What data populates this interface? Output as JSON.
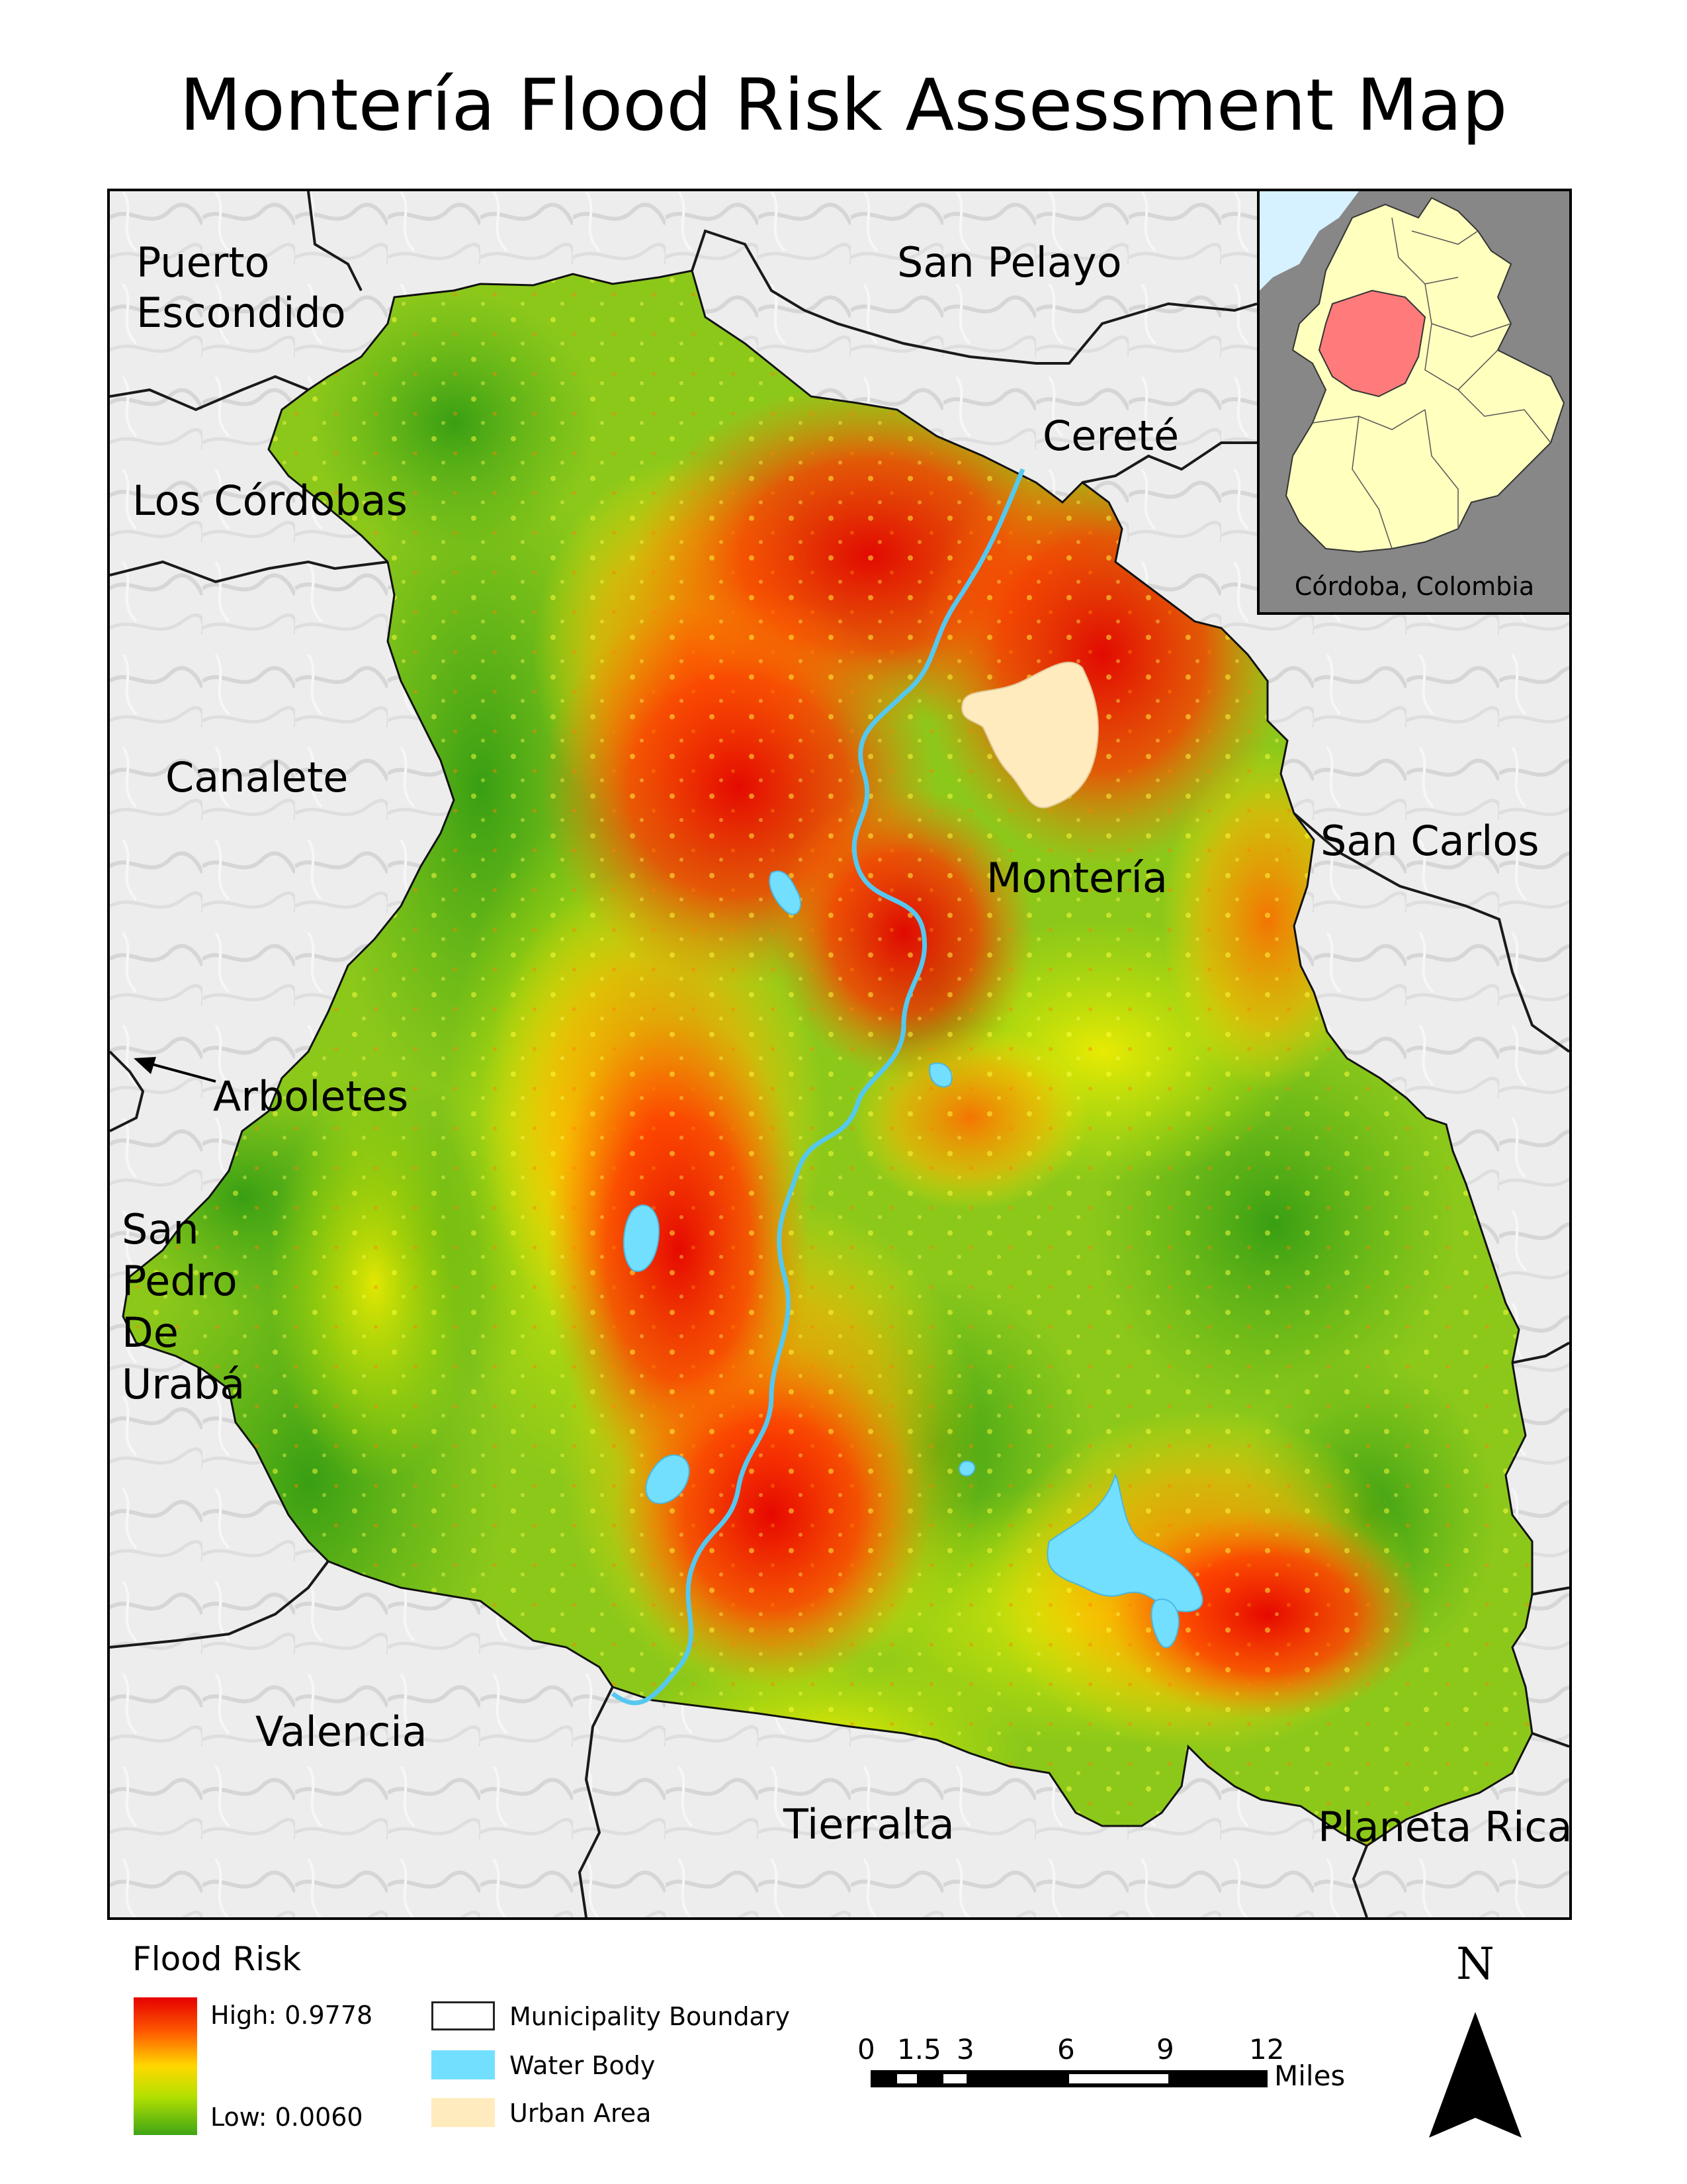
{
  "title": "Montería Flood Risk Assessment Map",
  "places": {
    "puerto_escondido": "Puerto\nEscondido",
    "san_pelayo": "San Pelayo",
    "cerete": "Cereté",
    "los_cordobas": "Los Córdobas",
    "canalete": "Canalete",
    "san_carlos": "San Carlos",
    "monteria": "Montería",
    "arboletes": "Arboletes",
    "san_pedro_de_uraba": "San\nPedro\nDe\nUrabá",
    "valencia": "Valencia",
    "tierralta": "Tierralta",
    "planeta_rica": "Planeta Rica"
  },
  "inset": {
    "label": "Córdoba, Colombia",
    "colors": {
      "department": "#ffffbe",
      "highlight": "#ff7b7b",
      "background": "#878787",
      "sea": "#d6f1ff"
    }
  },
  "legend": {
    "title": "Flood Risk",
    "high_label": "High: 0.9778",
    "low_label": "Low: 0.0060",
    "ramp_colors": [
      "#e60000",
      "#ff5a00",
      "#ffd800",
      "#b4e000",
      "#3fa516"
    ],
    "items": [
      {
        "label": "Municipality Boundary",
        "color": "#ffffff"
      },
      {
        "label": "Water Body",
        "color": "#73dfff"
      },
      {
        "label": "Urban Area",
        "color": "#ffebbe"
      }
    ]
  },
  "scale_bar": {
    "ticks": [
      "0",
      "1.5",
      "3",
      "6",
      "9",
      "12"
    ],
    "unit": "Miles"
  },
  "north_arrow": {
    "label": "N"
  }
}
